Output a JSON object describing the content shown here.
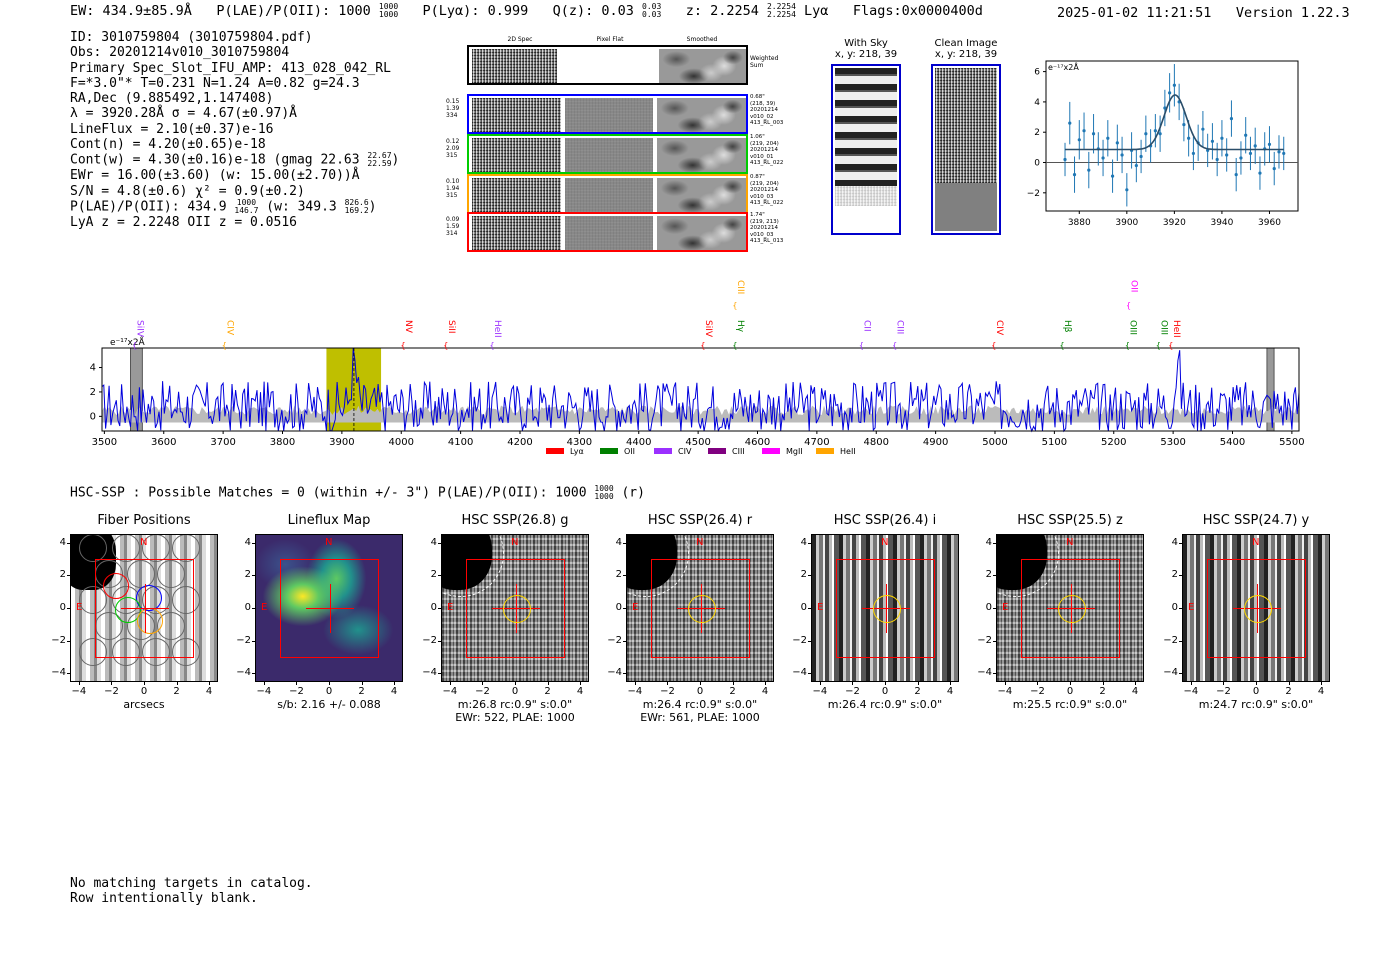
{
  "header": {
    "ew": "EW: 434.9±85.9Å",
    "plae_label": "P(LAE)/P(OII): 1000",
    "plae_hi": "1000",
    "plae_lo": "1000",
    "plya": "P(Lyα): 0.999",
    "qz": "Q(z): 0.03",
    "qz_hi": "0.03",
    "qz_lo": "0.03",
    "z_label": "z: 2.2254",
    "z_hi": "2.2254",
    "z_lo": "2.2254",
    "z_line": "Lyα",
    "flags": "Flags:0x0000400d",
    "timestamp": "2025-01-02 11:21:51",
    "version": "Version 1.22.3"
  },
  "info": {
    "id": "ID: 3010759804 (3010759804.pdf)",
    "obs": "Obs: 20201214v010_3010759804",
    "slot": "Primary Spec_Slot_IFU_AMP: 413_028_042_RL",
    "fit": "F=*3.0\"*  T=0.231  N=1.24  A=0.82  g=24.3",
    "radec": "RA,Dec (9.885492,1.147408)",
    "lambda": "λ = 3920.28Å  σ = 4.67(±0.97)Å",
    "lineflux": "LineFlux = 2.10(±0.37)e-16",
    "contn": "Cont(n) = 4.20(±0.65)e-18",
    "contw": "Cont(w) = 4.30(±0.16)e-18 (gmag 22.63",
    "contw_hi": "22.67",
    "contw_lo": "22.59",
    "contw_end": ")",
    "ewr": "EWr = 16.00(±3.60) (w: 15.00(±2.70))Å",
    "sn": "S/N = 4.8(±0.6)  χ² = 0.9(±0.2)",
    "plae": "P(LAE)/P(OII): 434.9",
    "plae_hi": "1000",
    "plae_lo": "146.7",
    "plae_w": "(w: 349.3",
    "plae_w_hi": "826.6",
    "plae_w_lo": "169.2",
    "plae_w_end": ")",
    "z": "LyA z = 2.2248   OII z = 0.0516"
  },
  "cutouts": {
    "col_labels": [
      "2D Spec",
      "Pixel Flat",
      "Smoothed"
    ],
    "weighted_sum": [
      "Weighted",
      "Sum"
    ],
    "rows": [
      {
        "left": [
          "0.15",
          "1.39",
          "334"
        ],
        "right": [
          "0.68\"",
          "(218, 39)",
          "20201214",
          "v010_02",
          "413_RL_003"
        ],
        "color": "#0000ff"
      },
      {
        "left": [
          "0.12",
          "2.09",
          "315"
        ],
        "right": [
          "1.06\"",
          "(219, 204)",
          "20201214",
          "v010_01",
          "413_RL_022"
        ],
        "color": "#00cc00"
      },
      {
        "left": [
          "0.10",
          "1.94",
          "315"
        ],
        "right": [
          "0.87\"",
          "(219, 204)",
          "20201214",
          "v010_03",
          "413_RL_022"
        ],
        "color": "#ffa500"
      },
      {
        "left": [
          "0.09",
          "1.59",
          "314"
        ],
        "right": [
          "1.74\"",
          "(219, 213)",
          "20201214",
          "v010_03",
          "413_RL_013"
        ],
        "color": "#ff0000"
      }
    ]
  },
  "sky": {
    "with_sky_title": "With Sky",
    "with_sky_xy": "x, y: 218, 39",
    "clean_title": "Clean Image",
    "clean_xy": "x, y: 218, 39"
  },
  "zoom_chart": {
    "unit": "e⁻¹⁷x2Å",
    "xticks": [
      "3880",
      "3900",
      "3920",
      "3940",
      "3960"
    ],
    "yticks": [
      "6",
      "4",
      "2",
      "0",
      "−2"
    ]
  },
  "chart_data": [
    {
      "type": "scatter",
      "title": "",
      "xlabel": "",
      "ylabel": "e⁻¹⁷x2Å",
      "xlim": [
        3866,
        3972
      ],
      "ylim": [
        -3.2,
        6.7
      ],
      "x": [
        3874,
        3876,
        3878,
        3880,
        3882,
        3884,
        3886,
        3888,
        3890,
        3892,
        3894,
        3896,
        3898,
        3900,
        3902,
        3904,
        3906,
        3908,
        3910,
        3912,
        3914,
        3916,
        3918,
        3920,
        3922,
        3924,
        3926,
        3928,
        3930,
        3932,
        3934,
        3936,
        3938,
        3940,
        3942,
        3944,
        3946,
        3948,
        3950,
        3952,
        3954,
        3956,
        3958,
        3960,
        3962,
        3964,
        3966
      ],
      "y": [
        0.2,
        2.6,
        -0.8,
        1.5,
        2.1,
        -0.5,
        1.9,
        0.9,
        0.3,
        1.6,
        -0.9,
        1.3,
        0.5,
        -1.8,
        0.8,
        -0.2,
        0.4,
        1.9,
        1.1,
        2.1,
        1.9,
        3.6,
        4.6,
        5.1,
        4.0,
        2.5,
        1.6,
        0.6,
        1.3,
        2.2,
        0.8,
        1.4,
        0.2,
        1.6,
        0.5,
        2.9,
        -0.8,
        0.3,
        1.8,
        0.6,
        1.1,
        -0.7,
        0.9,
        1.2,
        -0.4,
        0.7,
        0.6
      ],
      "err": [
        1.1,
        1.4,
        1.2,
        1.3,
        1.2,
        1.2,
        1.3,
        1.1,
        1.2,
        1.2,
        1.1,
        1.2,
        1.2,
        1.1,
        1.2,
        1.1,
        1.1,
        1.2,
        1.1,
        1.1,
        1.2,
        1.2,
        1.3,
        1.4,
        1.2,
        1.1,
        1.2,
        1.1,
        1.2,
        1.2,
        1.1,
        1.2,
        1.1,
        1.2,
        1.1,
        1.2,
        1.1,
        1.1,
        1.2,
        1.1,
        1.2,
        1.1,
        1.1,
        1.2,
        1.1,
        1.1,
        1.1
      ],
      "fit": {
        "continuum": 0.86,
        "amp": 3.6,
        "center": 3920.28,
        "sigma": 4.67,
        "xrange": [
          3874,
          3966
        ]
      }
    },
    {
      "type": "line",
      "title": "",
      "xlabel": "",
      "ylabel": "e⁻¹⁷x2Å",
      "xlim": [
        3496,
        5512
      ],
      "ylim": [
        -1.2,
        5.6
      ],
      "xticks": [
        3500,
        3600,
        3700,
        3800,
        3900,
        4000,
        4100,
        4200,
        4300,
        4400,
        4500,
        4600,
        4700,
        4800,
        4900,
        5000,
        5100,
        5200,
        5300,
        5400,
        5500
      ],
      "yticks": [
        0,
        2,
        4
      ],
      "highlight_band": [
        3874,
        3966
      ],
      "peak_marker": 3920.28,
      "masked_bands": [
        [
          3544,
          3564
        ],
        [
          5458,
          5470
        ]
      ],
      "series": [
        {
          "name": "",
          "color": "#0000dd",
          "x": [
            3496,
            5512
          ],
          "generator": {
            "seed": 17,
            "step": 3,
            "noise": 1.4,
            "baseline": 0.8,
            "peaks": [
              {
                "center": 3920.28,
                "amp": 3.6,
                "sigma": 4.67
              },
              {
                "center": 5308,
                "amp": 3.6,
                "sigma": 4
              }
            ]
          }
        },
        {
          "name": "",
          "color": "#bbbbbb",
          "x": [
            3496,
            5512
          ],
          "generator": {
            "seed": 5,
            "step": 4,
            "noise": 0.4,
            "baseline": 0.5,
            "peaks": []
          }
        }
      ],
      "annotations": [
        {
          "label": "SiIV",
          "x": 3551,
          "color": "#9b30ff",
          "row": 1
        },
        {
          "label": "CIV",
          "x": 3702,
          "color": "#ffa500",
          "row": 1
        },
        {
          "label": "NV",
          "x": 4003,
          "color": "#ff0000",
          "row": 1
        },
        {
          "label": "SiII",
          "x": 4075,
          "color": "#ff0000",
          "row": 1
        },
        {
          "label": "HeII",
          "x": 4153,
          "color": "#9b30ff",
          "row": 1
        },
        {
          "label": "SiIV",
          "x": 4508,
          "color": "#ff0000",
          "row": 1
        },
        {
          "label": "Hγ",
          "x": 4562,
          "color": "#008000",
          "row": 1
        },
        {
          "label": "CIII",
          "x": 4562,
          "color": "#ffa500",
          "row": 0
        },
        {
          "label": "CII",
          "x": 4775,
          "color": "#9b30ff",
          "row": 1
        },
        {
          "label": "CIII",
          "x": 4831,
          "color": "#9b30ff",
          "row": 1
        },
        {
          "label": "CIV",
          "x": 4998,
          "color": "#ff0000",
          "row": 1
        },
        {
          "label": "Hβ",
          "x": 5113,
          "color": "#008000",
          "row": 1
        },
        {
          "label": "OIII",
          "x": 5223,
          "color": "#008000",
          "row": 1
        },
        {
          "label": "OII",
          "x": 5225,
          "color": "#ff00ff",
          "row": 0
        },
        {
          "label": "OIII",
          "x": 5275,
          "color": "#008000",
          "row": 1
        },
        {
          "label": "HeII",
          "x": 5296,
          "color": "#ff0000",
          "row": 1
        }
      ],
      "legend": [
        {
          "label": "Lyα",
          "color": "#ff0000"
        },
        {
          "label": "OII",
          "color": "#008000"
        },
        {
          "label": "CIV",
          "color": "#9b30ff"
        },
        {
          "label": "CIII",
          "color": "#800080"
        },
        {
          "label": "MgII",
          "color": "#ff00ff"
        },
        {
          "label": "HeII",
          "color": "#ffa500"
        }
      ]
    }
  ],
  "matches": {
    "line": "HSC-SSP : Possible Matches = 0 (within +/- 3\")  P(LAE)/P(OII): 1000",
    "hi": "1000",
    "lo": "1000",
    "end": "(r)"
  },
  "images": [
    {
      "title": "Fiber Positions",
      "caption1": "arcsecs",
      "caption2": "",
      "style": "fiber"
    },
    {
      "title": "Lineflux Map",
      "caption1": "s/b: 2.16 +/- 0.088",
      "caption2": "",
      "style": "map"
    },
    {
      "title": "HSC SSP(26.8) g",
      "caption1": "m:26.8 rc:0.9\"  s:0.0\"",
      "caption2": "EWr: 522, PLAE: 1000",
      "style": "hsc"
    },
    {
      "title": "HSC SSP(26.4) r",
      "caption1": "m:26.4 rc:0.9\"  s:0.0\"",
      "caption2": "EWr: 561, PLAE: 1000",
      "style": "hsc"
    },
    {
      "title": "HSC SSP(26.4) i",
      "caption1": "m:26.4 rc:0.9\"  s:0.0\"",
      "caption2": "",
      "style": "stripes"
    },
    {
      "title": "HSC SSP(25.5) z",
      "caption1": "m:25.5 rc:0.9\"  s:0.0\"",
      "caption2": "",
      "style": "hsc"
    },
    {
      "title": "HSC SSP(24.7) y",
      "caption1": "m:24.7 rc:0.9\"  s:0.0\"",
      "caption2": "",
      "style": "stripes"
    }
  ],
  "image_axes": {
    "xticks": [
      "−4",
      "−2",
      "0",
      "2",
      "4"
    ],
    "yticks": [
      "4",
      "2",
      "0",
      "−2",
      "−4"
    ],
    "north": "N",
    "east": "E"
  },
  "footer": {
    "line1": "No matching targets in catalog.",
    "line2": "Row intentionally blank."
  }
}
